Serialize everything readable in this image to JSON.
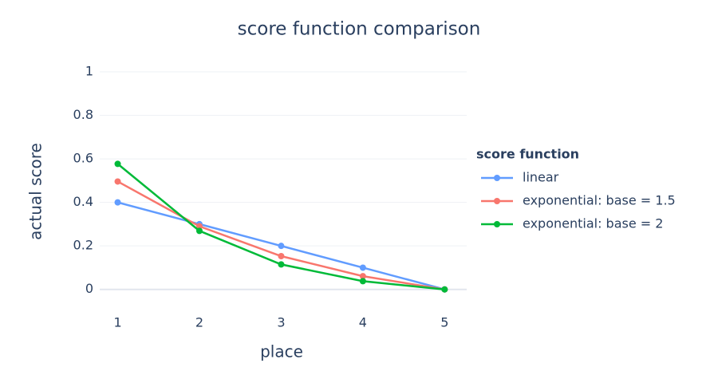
{
  "chart_data": {
    "type": "line",
    "title": "score function comparison",
    "x_label": "place",
    "y_label": "actual score",
    "legend_title": "score function",
    "x": [
      1,
      2,
      3,
      4,
      5
    ],
    "series": [
      {
        "name": "linear",
        "color": "#619cff",
        "values": [
          0.4,
          0.3,
          0.2,
          0.1,
          0
        ]
      },
      {
        "name": "exponential: base = 1.5",
        "color": "#f8766d",
        "values": [
          0.496,
          0.29,
          0.153,
          0.061,
          0
        ]
      },
      {
        "name": "exponential: base = 2",
        "color": "#00ba38",
        "values": [
          0.577,
          0.269,
          0.115,
          0.038,
          0
        ]
      }
    ],
    "xlim": [
      0.78,
      5.27
    ],
    "xticks": [
      1,
      2,
      3,
      4,
      5
    ],
    "ylim": [
      -0.1,
      1
    ],
    "yticks": [
      0,
      0.2,
      0.4,
      0.6,
      0.8,
      1
    ],
    "grid": true
  }
}
